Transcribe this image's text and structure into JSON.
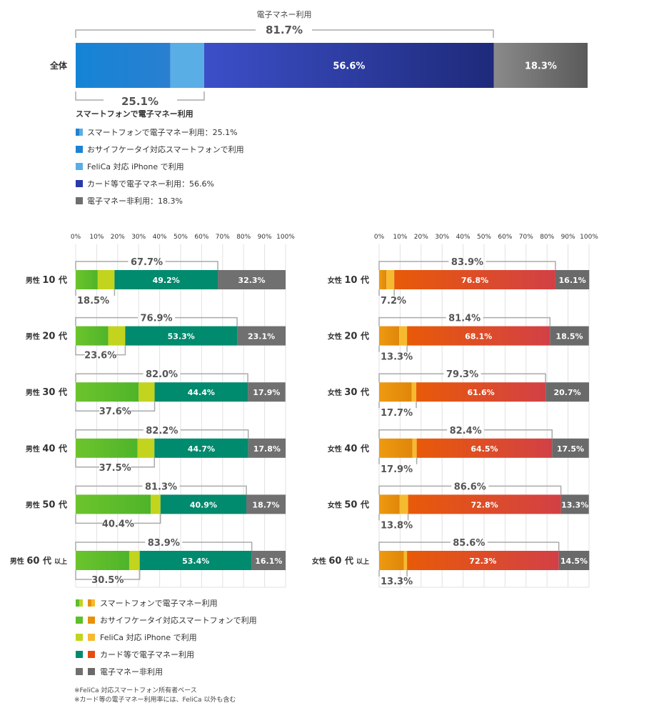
{
  "top": {
    "group_label": "電子マネー利用",
    "group_value": "81.7%",
    "row_label": "全体",
    "bottom_value": "25.1%",
    "bottom_label": "スマートフォンで電子マネー利用"
  },
  "top_legend": [
    {
      "text": "スマートフォンで電子マネー利用：25.1%",
      "icon": "split-blue-icon"
    },
    {
      "text": "おサイフケータイ対応スマートフォンで利用",
      "icon": "blue-square-icon"
    },
    {
      "text": "FeliCa 対応 iPhone で利用",
      "icon": "light-blue-square-icon"
    },
    {
      "text": "カード等で電子マネー利用：56.6%",
      "icon": "navy-square-icon"
    },
    {
      "text": "電子マネー非利用：18.3%",
      "icon": "gray-square-icon"
    }
  ],
  "bottom_legend": [
    {
      "text": "スマートフォンで電子マネー利用",
      "icon": "split-green-orange-icon"
    },
    {
      "text": "おサイフケータイ対応スマートフォンで利用",
      "icon": "green-orange-icon"
    },
    {
      "text": "FeliCa 対応 iPhone で利用",
      "icon": "lime-yellow-icon"
    },
    {
      "text": "カード等で電子マネー利用",
      "icon": "teal-red-icon"
    },
    {
      "text": "電子マネー非利用",
      "icon": "gray-pair-icon"
    }
  ],
  "notes": [
    "※FeliCa 対応スマートフォン所有者ベース",
    "※カード等の電子マネー利用率には、FeliCa 以外も含む"
  ],
  "colors": {
    "top_osaifu": "#1e82d2",
    "top_iphone": "#5aaee6",
    "top_card_from": "#3c4fc8",
    "top_card_to": "#1e2a7a",
    "top_none": "#6e6e6e",
    "male_osaifu": "#5dbf2a",
    "male_iphone": "#c2d41e",
    "male_card": "#008a6e",
    "male_none": "#707070",
    "female_osaifu": "#e8900c",
    "female_iphone": "#f6ba30",
    "female_card_from": "#e64c10",
    "female_card_to": "#d04040",
    "female_none": "#6a6a6a",
    "bracket": "#aaaaaa"
  },
  "chart_data": [
    {
      "type": "bar",
      "stacked": true,
      "orientation": "horizontal",
      "categories": [
        "全体"
      ],
      "series": [
        {
          "name": "おサイフケータイ対応スマートフォンで利用",
          "values": [
            18.5
          ]
        },
        {
          "name": "FeliCa 対応 iPhone で利用",
          "values": [
            6.6
          ]
        },
        {
          "name": "カード等で電子マネー利用",
          "values": [
            56.6
          ],
          "label": "56.6%"
        },
        {
          "name": "電子マネー非利用",
          "values": [
            18.3
          ],
          "label": "18.3%"
        }
      ],
      "brackets": {
        "top": "81.7%",
        "bottom": "25.1%"
      }
    },
    {
      "type": "bar",
      "stacked": true,
      "orientation": "horizontal",
      "group": "male",
      "xlim": [
        0,
        100
      ],
      "ticks": [
        "0%",
        "10%",
        "20%",
        "30%",
        "40%",
        "50%",
        "60%",
        "70%",
        "80%",
        "90%",
        "100%"
      ],
      "rows": [
        {
          "gender": "男性",
          "num": "10",
          "dai": "代",
          "suffix": "",
          "osaifu": 10.5,
          "iphone": 8.0,
          "card": 49.2,
          "none": 32.3,
          "card_label": "49.2%",
          "none_label": "32.3%",
          "total": "67.7%",
          "smart": "18.5%"
        },
        {
          "gender": "男性",
          "num": "20",
          "dai": "代",
          "suffix": "",
          "osaifu": 15.5,
          "iphone": 8.1,
          "card": 53.3,
          "none": 23.1,
          "card_label": "53.3%",
          "none_label": "23.1%",
          "total": "76.9%",
          "smart": "23.6%"
        },
        {
          "gender": "男性",
          "num": "30",
          "dai": "代",
          "suffix": "",
          "osaifu": 30.0,
          "iphone": 7.6,
          "card": 44.4,
          "none": 17.9,
          "card_label": "44.4%",
          "none_label": "17.9%",
          "total": "82.0%",
          "smart": "37.6%"
        },
        {
          "gender": "男性",
          "num": "40",
          "dai": "代",
          "suffix": "",
          "osaifu": 29.5,
          "iphone": 8.0,
          "card": 44.7,
          "none": 17.8,
          "card_label": "44.7%",
          "none_label": "17.8%",
          "total": "82.2%",
          "smart": "37.5%"
        },
        {
          "gender": "男性",
          "num": "50",
          "dai": "代",
          "suffix": "",
          "osaifu": 35.8,
          "iphone": 4.6,
          "card": 40.9,
          "none": 18.7,
          "card_label": "40.9%",
          "none_label": "18.7%",
          "total": "81.3%",
          "smart": "40.4%"
        },
        {
          "gender": "男性",
          "num": "60",
          "dai": "代",
          "suffix": "以上",
          "osaifu": 25.5,
          "iphone": 5.0,
          "card": 53.4,
          "none": 16.1,
          "card_label": "53.4%",
          "none_label": "16.1%",
          "total": "83.9%",
          "smart": "30.5%"
        }
      ]
    },
    {
      "type": "bar",
      "stacked": true,
      "orientation": "horizontal",
      "group": "female",
      "xlim": [
        0,
        100
      ],
      "ticks": [
        "0%",
        "10%",
        "20%",
        "30%",
        "40%",
        "50%",
        "60%",
        "70%",
        "80%",
        "90%",
        "100%"
      ],
      "rows": [
        {
          "gender": "女性",
          "num": "10",
          "dai": "代",
          "suffix": "",
          "osaifu": 3.5,
          "iphone": 3.7,
          "card": 76.8,
          "none": 16.1,
          "card_label": "76.8%",
          "none_label": "16.1%",
          "total": "83.9%",
          "smart": "7.2%"
        },
        {
          "gender": "女性",
          "num": "20",
          "dai": "代",
          "suffix": "",
          "osaifu": 9.6,
          "iphone": 3.7,
          "card": 68.1,
          "none": 18.5,
          "card_label": "68.1%",
          "none_label": "18.5%",
          "total": "81.4%",
          "smart": "13.3%"
        },
        {
          "gender": "女性",
          "num": "30",
          "dai": "代",
          "suffix": "",
          "osaifu": 15.5,
          "iphone": 2.2,
          "card": 61.6,
          "none": 20.7,
          "card_label": "61.6%",
          "none_label": "20.7%",
          "total": "79.3%",
          "smart": "17.7%"
        },
        {
          "gender": "女性",
          "num": "40",
          "dai": "代",
          "suffix": "",
          "osaifu": 15.9,
          "iphone": 2.0,
          "card": 64.5,
          "none": 17.5,
          "card_label": "64.5%",
          "none_label": "17.5%",
          "total": "82.4%",
          "smart": "17.9%"
        },
        {
          "gender": "女性",
          "num": "50",
          "dai": "代",
          "suffix": "",
          "osaifu": 9.8,
          "iphone": 4.0,
          "card": 72.8,
          "none": 13.3,
          "card_label": "72.8%",
          "none_label": "13.3%",
          "total": "86.6%",
          "smart": "13.8%"
        },
        {
          "gender": "女性",
          "num": "60",
          "dai": "代",
          "suffix": "以上",
          "osaifu": 11.8,
          "iphone": 1.5,
          "card": 72.3,
          "none": 14.5,
          "card_label": "72.3%",
          "none_label": "14.5%",
          "total": "85.6%",
          "smart": "13.3%"
        }
      ]
    }
  ]
}
